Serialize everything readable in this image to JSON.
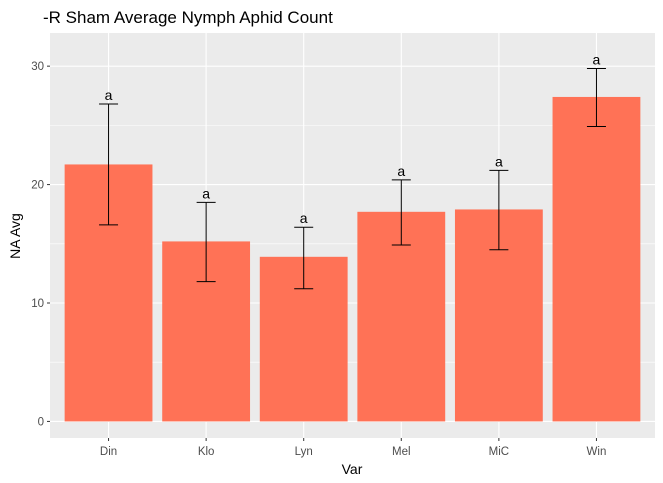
{
  "chart_data": {
    "type": "bar",
    "title": "-R Sham Average Nymph Aphid Count",
    "xlabel": "Var",
    "ylabel": "NA Avg",
    "categories": [
      "Din",
      "Klo",
      "Lyn",
      "Mel",
      "MiC",
      "Win"
    ],
    "values": [
      21.7,
      15.2,
      13.9,
      17.7,
      17.9,
      27.4
    ],
    "error_low": [
      16.6,
      11.8,
      11.2,
      14.9,
      14.5,
      24.9
    ],
    "error_high": [
      26.8,
      18.5,
      16.4,
      20.4,
      21.2,
      29.8
    ],
    "significance_labels": [
      "a",
      "a",
      "a",
      "a",
      "a",
      "a"
    ],
    "ylim": [
      -1.4,
      32.8
    ],
    "yticks": [
      0,
      10,
      20,
      30
    ],
    "grid": true,
    "bar_color": "#ff7256",
    "panel_background": "#ebebeb",
    "grid_color": "#ffffff"
  }
}
